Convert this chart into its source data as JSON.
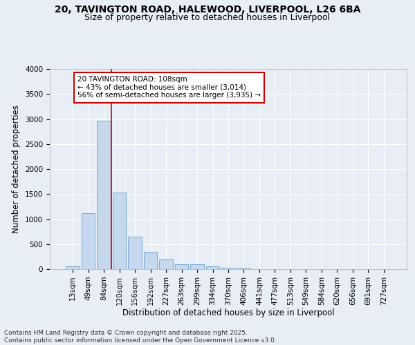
{
  "title_line1": "20, TAVINGTON ROAD, HALEWOOD, LIVERPOOL, L26 6BA",
  "title_line2": "Size of property relative to detached houses in Liverpool",
  "xlabel": "Distribution of detached houses by size in Liverpool",
  "ylabel": "Number of detached properties",
  "categories": [
    "13sqm",
    "49sqm",
    "84sqm",
    "120sqm",
    "156sqm",
    "192sqm",
    "227sqm",
    "263sqm",
    "299sqm",
    "334sqm",
    "370sqm",
    "406sqm",
    "441sqm",
    "477sqm",
    "513sqm",
    "549sqm",
    "584sqm",
    "620sqm",
    "656sqm",
    "691sqm",
    "727sqm"
  ],
  "values": [
    50,
    1120,
    2970,
    1535,
    650,
    345,
    200,
    100,
    95,
    60,
    30,
    15,
    5,
    2,
    2,
    0,
    0,
    0,
    0,
    0,
    0
  ],
  "bar_color": "#c5d8ee",
  "bar_edge_color": "#6aa0cc",
  "vline_x": 2.5,
  "vline_color": "#cc0000",
  "annotation_text": "20 TAVINGTON ROAD: 108sqm\n← 43% of detached houses are smaller (3,014)\n56% of semi-detached houses are larger (3,935) →",
  "ylim": [
    0,
    4000
  ],
  "yticks": [
    0,
    500,
    1000,
    1500,
    2000,
    2500,
    3000,
    3500,
    4000
  ],
  "background_color": "#e8eef5",
  "grid_color": "#ffffff",
  "footer_line1": "Contains HM Land Registry data © Crown copyright and database right 2025.",
  "footer_line2": "Contains public sector information licensed under the Open Government Licence v3.0.",
  "title_fontsize": 10,
  "subtitle_fontsize": 9,
  "axis_label_fontsize": 8.5,
  "tick_fontsize": 7.5,
  "annotation_fontsize": 7.5,
  "footer_fontsize": 6.5
}
